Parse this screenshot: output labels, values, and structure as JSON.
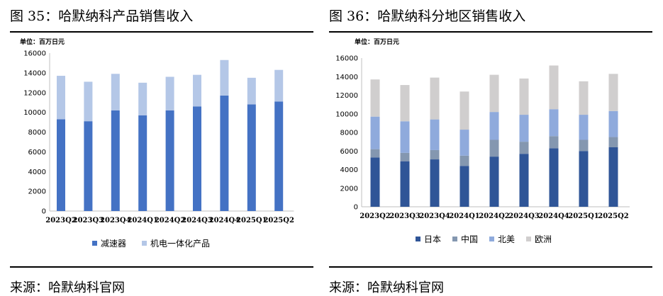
{
  "charts": {
    "left": {
      "title": "图 35：哈默纳科产品销售收入",
      "unit_label": "单位：百万日元",
      "source": "来源：哈默纳科官网"
    },
    "right": {
      "title": "图 36：哈默纳科分地区销售收入",
      "unit_label": "单位：百万日元",
      "source": "来源：哈默纳科官网"
    }
  },
  "chart_data": [
    {
      "type": "bar",
      "stacked": true,
      "title": "图 35：哈默纳科产品销售收入",
      "unit": "单位：百万日元",
      "categories": [
        "2023Q2",
        "2023Q3",
        "2023Q4",
        "2024Q1",
        "2024Q2",
        "2024Q3",
        "2024Q4",
        "2025Q1",
        "2025Q2"
      ],
      "series": [
        {
          "name": "减速器",
          "color": "#4472C4",
          "values": [
            9300,
            9100,
            10200,
            9700,
            10200,
            10600,
            11700,
            10800,
            11100
          ]
        },
        {
          "name": "机电一体化产品",
          "color": "#B4C7E7",
          "values": [
            4400,
            4000,
            3700,
            3300,
            3400,
            3200,
            3600,
            2700,
            3200
          ]
        }
      ],
      "yticks": [
        0,
        2000,
        4000,
        6000,
        8000,
        10000,
        12000,
        14000,
        16000
      ],
      "ylim": [
        0,
        16000
      ],
      "grid": false,
      "legend": "bottom"
    },
    {
      "type": "bar",
      "stacked": true,
      "title": "图 36：哈默纳科分地区销售收入",
      "unit": "单位：百万日元",
      "categories": [
        "2023Q2",
        "2023Q3",
        "2023Q4",
        "2024Q1",
        "2024Q2",
        "2024Q3",
        "2024Q4",
        "2025Q1",
        "2025Q2"
      ],
      "series": [
        {
          "name": "日本",
          "color": "#2F5597",
          "values": [
            5300,
            4900,
            5100,
            4400,
            5400,
            5700,
            6300,
            6000,
            6400
          ]
        },
        {
          "name": "中国",
          "color": "#8497B0",
          "values": [
            900,
            900,
            1000,
            1100,
            1800,
            1300,
            1300,
            1200,
            1100
          ]
        },
        {
          "name": "北美",
          "color": "#8FAADC",
          "values": [
            3500,
            3400,
            3300,
            2800,
            3000,
            2900,
            2900,
            2700,
            2800
          ]
        },
        {
          "name": "欧洲",
          "color": "#D0CECE",
          "values": [
            4000,
            3900,
            4500,
            4100,
            4000,
            3900,
            4700,
            3600,
            4000
          ]
        }
      ],
      "yticks": [
        0,
        2000,
        4000,
        6000,
        8000,
        10000,
        12000,
        14000,
        16000
      ],
      "ylim": [
        0,
        16000
      ],
      "grid": false,
      "legend": "bottom"
    }
  ]
}
